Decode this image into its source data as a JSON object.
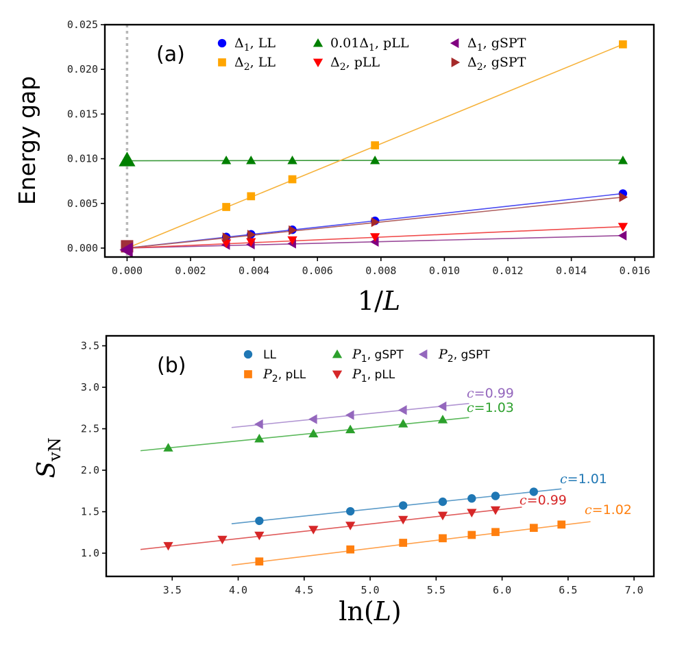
{
  "chart_data": [
    {
      "panel": "(a)",
      "type": "scatter",
      "xlabel": "1/L",
      "ylabel": "Energy gap",
      "xlim": [
        -0.0007,
        0.0166
      ],
      "ylim": [
        -0.001,
        0.025
      ],
      "xticks": [
        0.0,
        0.002,
        0.004,
        0.006,
        0.008,
        0.01,
        0.012,
        0.014,
        0.016
      ],
      "xtick_labels": [
        "0.000",
        "0.002",
        "0.004",
        "0.006",
        "0.008",
        "0.010",
        "0.012",
        "0.014",
        "0.016"
      ],
      "yticks": [
        0.0,
        0.005,
        0.01,
        0.015,
        0.02,
        0.025
      ],
      "ytick_labels": [
        "0.000",
        "0.005",
        "0.010",
        "0.015",
        "0.020",
        "0.025"
      ],
      "vline_x": 0.0,
      "legend_position": "top",
      "series": [
        {
          "name": "Δ1, LL",
          "legend": {
            "sym": "Δ",
            "sub": "1",
            "suffix": ", LL",
            "prefix": ""
          },
          "color": "#0000ff",
          "line_color": "#4a4af0",
          "marker": "circle",
          "x": [
            0.003125,
            0.003906,
            0.005208,
            0.0078125,
            0.015625
          ],
          "y": [
            0.00125,
            0.00155,
            0.00205,
            0.00305,
            0.0061
          ],
          "fit": {
            "x": [
              0.0,
              0.015625
            ],
            "y": [
              0.0,
              0.0061
            ]
          }
        },
        {
          "name": "0.01Δ1, pLL",
          "legend": {
            "sym": "Δ",
            "sub": "1",
            "suffix": ", pLL",
            "prefix": "0.01"
          },
          "color": "#008000",
          "line_color": "#3a9a3a",
          "marker": "triangle-up",
          "x": [
            0.003125,
            0.003906,
            0.005208,
            0.0078125,
            0.015625
          ],
          "y": [
            0.0098,
            0.0098,
            0.0098,
            0.0098,
            0.0098
          ],
          "fit": {
            "x": [
              0.0,
              0.015625
            ],
            "y": [
              0.00977,
              0.00985
            ]
          },
          "extrapolated": {
            "x": 0.0,
            "y": 0.00985
          }
        },
        {
          "name": "Δ1, gSPT",
          "legend": {
            "sym": "Δ",
            "sub": "1",
            "suffix": ", gSPT",
            "prefix": ""
          },
          "color": "#800080",
          "line_color": "#9a4a9a",
          "marker": "triangle-left",
          "x": [
            0.003125,
            0.003906,
            0.005208,
            0.0078125,
            0.015625
          ],
          "y": [
            0.00035,
            0.0004,
            0.0005,
            0.0007,
            0.0014
          ],
          "fit": {
            "x": [
              0.0,
              0.015625
            ],
            "y": [
              0.0,
              0.0014
            ]
          }
        },
        {
          "name": "Δ2, LL",
          "legend": {
            "sym": "Δ",
            "sub": "2",
            "suffix": ", LL",
            "prefix": ""
          },
          "color": "#ffa500",
          "line_color": "#f6b23a",
          "marker": "square",
          "x": [
            0.003125,
            0.003906,
            0.005208,
            0.0078125,
            0.015625
          ],
          "y": [
            0.0046,
            0.0058,
            0.0077,
            0.0115,
            0.0228
          ],
          "fit": {
            "x": [
              0.0,
              0.015625
            ],
            "y": [
              0.0,
              0.0228
            ]
          }
        },
        {
          "name": "Δ2, pLL",
          "legend": {
            "sym": "Δ",
            "sub": "2",
            "suffix": ", pLL",
            "prefix": ""
          },
          "color": "#ff0000",
          "line_color": "#f04a4a",
          "marker": "triangle-down",
          "x": [
            0.003125,
            0.003906,
            0.005208,
            0.0078125,
            0.015625
          ],
          "y": [
            0.00055,
            0.0007,
            0.0009,
            0.00125,
            0.0024
          ],
          "fit": {
            "x": [
              0.0,
              0.015625
            ],
            "y": [
              0.0,
              0.0024
            ]
          }
        },
        {
          "name": "Δ2, gSPT",
          "legend": {
            "sym": "Δ",
            "sub": "2",
            "suffix": ", gSPT",
            "prefix": ""
          },
          "color": "#a52a2a",
          "line_color": "#b06060",
          "marker": "triangle-right",
          "x": [
            0.003125,
            0.003906,
            0.005208,
            0.0078125,
            0.015625
          ],
          "y": [
            0.0012,
            0.0015,
            0.002,
            0.0029,
            0.0057
          ],
          "fit": {
            "x": [
              0.0,
              0.015625
            ],
            "y": [
              0.0,
              0.0057
            ]
          }
        }
      ],
      "extrapolated_zero": [
        {
          "marker": "square",
          "color": "#a0303a",
          "x": 0.0,
          "y": 0.0002
        },
        {
          "marker": "triangle-left",
          "color": "#800080",
          "x": 0.0,
          "y": -0.0002
        }
      ]
    },
    {
      "panel": "(b)",
      "type": "scatter",
      "xlabel": "ln(L)",
      "ylabel": "S_vN",
      "ylabel_sym": "S",
      "ylabel_sub": "vN",
      "xlim": [
        3.0,
        7.15
      ],
      "ylim": [
        0.72,
        3.62
      ],
      "xticks": [
        3.5,
        4.0,
        4.5,
        5.0,
        5.5,
        6.0,
        6.5,
        7.0
      ],
      "xtick_labels": [
        "3.5",
        "4.0",
        "4.5",
        "5.0",
        "5.5",
        "6.0",
        "6.5",
        "7.0"
      ],
      "yticks": [
        1.0,
        1.5,
        2.0,
        2.5,
        3.0,
        3.5
      ],
      "ytick_labels": [
        "1.0",
        "1.5",
        "2.0",
        "2.5",
        "3.0",
        "3.5"
      ],
      "legend_position": "top",
      "series": [
        {
          "name": "LL",
          "legend": {
            "italic": "",
            "sub": "",
            "suffix": "LL"
          },
          "color": "#1f77b4",
          "line_color": "#5a9ac8",
          "marker": "circle",
          "x": [
            4.16,
            4.85,
            5.25,
            5.55,
            5.77,
            5.95,
            6.24
          ],
          "y": [
            1.39,
            1.505,
            1.575,
            1.62,
            1.66,
            1.69,
            1.74
          ],
          "fit": {
            "x": [
              3.95,
              6.45
            ],
            "y": [
              1.355,
              1.775
            ]
          },
          "c_prefix": "c",
          "c_value": "=1.01"
        },
        {
          "name": "P2, pLL",
          "legend": {
            "italic": "P",
            "sub": "2",
            "suffix": ", pLL"
          },
          "color": "#ff7f0e",
          "line_color": "#ffa04a",
          "marker": "square",
          "x": [
            4.16,
            4.85,
            5.25,
            5.55,
            5.77,
            5.95,
            6.24,
            6.45
          ],
          "y": [
            0.9,
            1.045,
            1.125,
            1.18,
            1.22,
            1.255,
            1.305,
            1.345
          ],
          "fit": {
            "x": [
              3.95,
              6.67
            ],
            "y": [
              0.855,
              1.38
            ]
          },
          "c_prefix": "c",
          "c_value": "=1.02"
        },
        {
          "name": "P1, gSPT",
          "legend": {
            "italic": "P",
            "sub": "1",
            "suffix": ", gSPT"
          },
          "color": "#2ca02c",
          "line_color": "#5ab85a",
          "marker": "triangle-up",
          "x": [
            3.47,
            4.16,
            4.57,
            4.85,
            5.25,
            5.55
          ],
          "y": [
            2.27,
            2.38,
            2.44,
            2.49,
            2.56,
            2.61
          ],
          "fit": {
            "x": [
              3.26,
              5.75
            ],
            "y": [
              2.235,
              2.635
            ]
          },
          "c_prefix": "c",
          "c_value": "=1.03"
        },
        {
          "name": "P1, pLL",
          "legend": {
            "italic": "P",
            "sub": "1",
            "suffix": ", pLL"
          },
          "color": "#d62728",
          "line_color": "#df5a5a",
          "marker": "triangle-down",
          "x": [
            3.47,
            3.88,
            4.16,
            4.57,
            4.85,
            5.25,
            5.55,
            5.77,
            5.95
          ],
          "y": [
            1.09,
            1.165,
            1.215,
            1.285,
            1.335,
            1.405,
            1.455,
            1.49,
            1.52
          ],
          "fit": {
            "x": [
              3.26,
              6.15
            ],
            "y": [
              1.045,
              1.555
            ]
          },
          "c_prefix": "c",
          "c_value": "=0.99"
        },
        {
          "name": "P2, gSPT",
          "legend": {
            "italic": "P",
            "sub": "2",
            "suffix": ", gSPT"
          },
          "color": "#9467bd",
          "line_color": "#b094d2",
          "marker": "triangle-left",
          "x": [
            4.16,
            4.57,
            4.85,
            5.25,
            5.55
          ],
          "y": [
            2.555,
            2.615,
            2.665,
            2.725,
            2.77
          ],
          "fit": {
            "x": [
              3.95,
              5.75
            ],
            "y": [
              2.515,
              2.805
            ]
          },
          "c_prefix": "c",
          "c_value": "=0.99"
        }
      ]
    }
  ],
  "panels": {
    "a": {
      "label": "(a)",
      "ylabel": "Energy gap",
      "xlabel_num": "1/",
      "xlabel_var": "L"
    },
    "b": {
      "label": "(b)",
      "xlabel_pre": "ln(",
      "xlabel_var": "L",
      "xlabel_post": ")"
    }
  }
}
